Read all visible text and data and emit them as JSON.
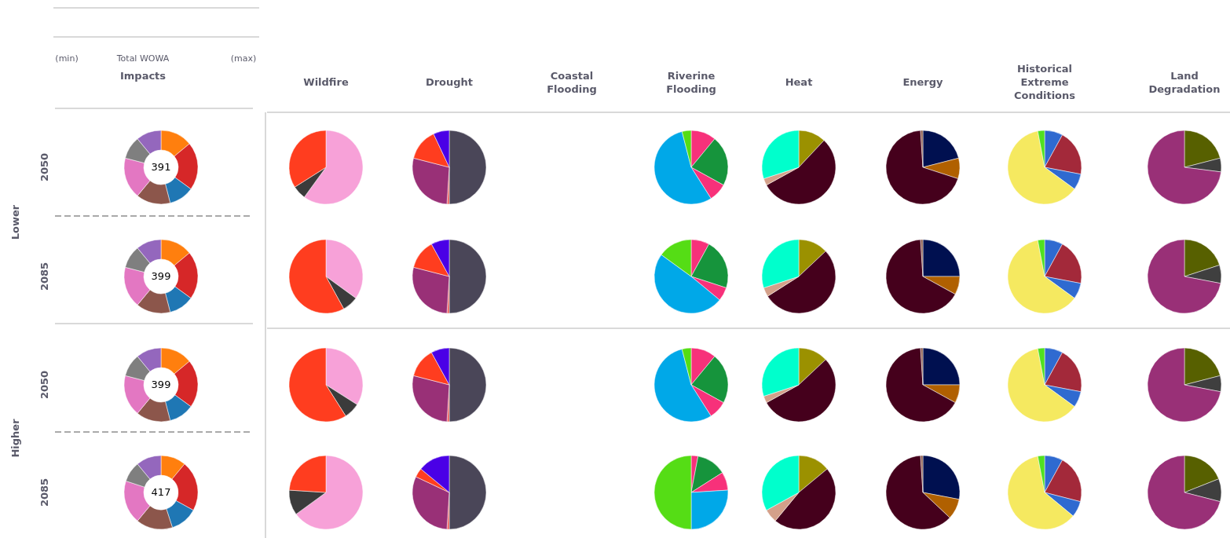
{
  "chart_data": [
    {
      "type": "other",
      "annotations": [
        "(min)",
        "Total WOWA",
        "(max)",
        "Impacts"
      ]
    },
    {
      "type": "other",
      "annotations": [
        "Wildfire",
        "Drought",
        "Coastal Flooding",
        "Riverine Flooding",
        "Heat",
        "Energy",
        "Historical Extreme Conditions",
        "Land Degradation"
      ]
    },
    {
      "type": "other",
      "annotations": [
        "Lower",
        "Higher",
        "2050",
        "2085",
        "2050",
        "2085"
      ]
    },
    {
      "type": "donut",
      "categories": [
        null,
        null,
        null,
        null,
        null,
        null,
        null
      ],
      "values": [
        14,
        21,
        11,
        15,
        18,
        10,
        11
      ],
      "colors": [
        "#ff7f0e",
        "#d62728",
        "#1f77b4",
        "#8c564b",
        "#e377c2",
        "#7f7f7f",
        "#9467bd"
      ],
      "annotations": [
        "391"
      ]
    },
    {
      "type": "pie",
      "categories": [
        null,
        null,
        null
      ],
      "values": [
        60,
        6,
        34
      ],
      "colors": [
        "#f7a1d8",
        "#3b3b3b",
        "#ff3d1f"
      ]
    },
    {
      "type": "pie",
      "categories": [
        null,
        null,
        null,
        null,
        null
      ],
      "values": [
        50,
        1,
        28,
        14,
        7
      ],
      "colors": [
        "#4a4658",
        "#f0605a",
        "#993077",
        "#ff3d1f",
        "#4a00e6"
      ]
    },
    {
      "type": "pie",
      "categories": [
        null,
        null,
        null,
        null,
        null
      ],
      "values": [
        11,
        22,
        8,
        55,
        4
      ],
      "colors": [
        "#f7317a",
        "#16943c",
        "#f7317a",
        "#00a8e8",
        "#55dd15"
      ]
    },
    {
      "type": "pie",
      "categories": [
        null,
        null,
        null,
        null
      ],
      "values": [
        12,
        55,
        3,
        30
      ],
      "colors": [
        "#9b9100",
        "#45001c",
        "#d4a08a",
        "#00ffcc"
      ]
    },
    {
      "type": "pie",
      "categories": [
        null,
        null,
        null,
        null
      ],
      "values": [
        21,
        9,
        69,
        1
      ],
      "colors": [
        "#001050",
        "#b06000",
        "#45001c",
        "#8b5a4a"
      ]
    },
    {
      "type": "pie",
      "categories": [
        null,
        null,
        null,
        null,
        null
      ],
      "values": [
        8,
        20,
        7,
        62,
        3
      ],
      "colors": [
        "#2f6ad0",
        "#a3293a",
        "#2f6ad0",
        "#f5e960",
        "#50e020"
      ]
    },
    {
      "type": "pie",
      "categories": [
        null,
        null,
        null
      ],
      "values": [
        21,
        6,
        73
      ],
      "colors": [
        "#576000",
        "#3f3f3f",
        "#993077"
      ]
    },
    {
      "type": "donut",
      "categories": [
        null,
        null,
        null,
        null,
        null,
        null,
        null
      ],
      "values": [
        14,
        21,
        11,
        15,
        18,
        10,
        11
      ],
      "colors": [
        "#ff7f0e",
        "#d62728",
        "#1f77b4",
        "#8c564b",
        "#e377c2",
        "#7f7f7f",
        "#9467bd"
      ],
      "annotations": [
        "399"
      ]
    },
    {
      "type": "pie",
      "categories": [
        null,
        null,
        null
      ],
      "values": [
        35,
        7,
        58
      ],
      "colors": [
        "#f7a1d8",
        "#3b3b3b",
        "#ff3d1f"
      ]
    },
    {
      "type": "pie",
      "categories": [
        null,
        null,
        null,
        null,
        null
      ],
      "values": [
        50,
        1,
        28,
        13,
        8
      ],
      "colors": [
        "#4a4658",
        "#f0605a",
        "#993077",
        "#ff3d1f",
        "#4a00e6"
      ]
    },
    {
      "type": "pie",
      "categories": [
        null,
        null,
        null,
        null,
        null
      ],
      "values": [
        8,
        22,
        6,
        49,
        15
      ],
      "colors": [
        "#f7317a",
        "#16943c",
        "#f7317a",
        "#00a8e8",
        "#55dd15"
      ]
    },
    {
      "type": "pie",
      "categories": [
        null,
        null,
        null,
        null
      ],
      "values": [
        13,
        53,
        4,
        30
      ],
      "colors": [
        "#9b9100",
        "#45001c",
        "#d4a08a",
        "#00ffcc"
      ]
    },
    {
      "type": "pie",
      "categories": [
        null,
        null,
        null,
        null
      ],
      "values": [
        25,
        8,
        66,
        1
      ],
      "colors": [
        "#001050",
        "#b06000",
        "#45001c",
        "#8b5a4a"
      ]
    },
    {
      "type": "pie",
      "categories": [
        null,
        null,
        null,
        null,
        null
      ],
      "values": [
        8,
        20,
        7,
        62,
        3
      ],
      "colors": [
        "#2f6ad0",
        "#a3293a",
        "#2f6ad0",
        "#f5e960",
        "#50e020"
      ]
    },
    {
      "type": "pie",
      "categories": [
        null,
        null,
        null
      ],
      "values": [
        20,
        8,
        72
      ],
      "colors": [
        "#576000",
        "#3f3f3f",
        "#993077"
      ]
    },
    {
      "type": "donut",
      "categories": [
        null,
        null,
        null,
        null,
        null,
        null,
        null
      ],
      "values": [
        14,
        21,
        11,
        15,
        18,
        10,
        11
      ],
      "colors": [
        "#ff7f0e",
        "#d62728",
        "#1f77b4",
        "#8c564b",
        "#e377c2",
        "#7f7f7f",
        "#9467bd"
      ],
      "annotations": [
        "399"
      ]
    },
    {
      "type": "pie",
      "categories": [
        null,
        null,
        null
      ],
      "values": [
        34,
        7,
        59
      ],
      "colors": [
        "#f7a1d8",
        "#3b3b3b",
        "#ff3d1f"
      ]
    },
    {
      "type": "pie",
      "categories": [
        null,
        null,
        null,
        null,
        null
      ],
      "values": [
        50,
        1,
        28,
        13,
        8
      ],
      "colors": [
        "#4a4658",
        "#f0605a",
        "#993077",
        "#ff3d1f",
        "#4a00e6"
      ]
    },
    {
      "type": "pie",
      "categories": [
        null,
        null,
        null,
        null,
        null
      ],
      "values": [
        11,
        22,
        8,
        55,
        4
      ],
      "colors": [
        "#f7317a",
        "#16943c",
        "#f7317a",
        "#00a8e8",
        "#55dd15"
      ]
    },
    {
      "type": "pie",
      "categories": [
        null,
        null,
        null,
        null
      ],
      "values": [
        13,
        54,
        3,
        30
      ],
      "colors": [
        "#9b9100",
        "#45001c",
        "#d4a08a",
        "#00ffcc"
      ]
    },
    {
      "type": "pie",
      "categories": [
        null,
        null,
        null,
        null
      ],
      "values": [
        25,
        8,
        66,
        1
      ],
      "colors": [
        "#001050",
        "#b06000",
        "#45001c",
        "#8b5a4a"
      ]
    },
    {
      "type": "pie",
      "categories": [
        null,
        null,
        null,
        null,
        null
      ],
      "values": [
        8,
        20,
        7,
        62,
        3
      ],
      "colors": [
        "#2f6ad0",
        "#a3293a",
        "#2f6ad0",
        "#f5e960",
        "#50e020"
      ]
    },
    {
      "type": "pie",
      "categories": [
        null,
        null,
        null
      ],
      "values": [
        21,
        7,
        72
      ],
      "colors": [
        "#576000",
        "#3f3f3f",
        "#993077"
      ]
    },
    {
      "type": "donut",
      "categories": [
        null,
        null,
        null,
        null,
        null,
        null,
        null
      ],
      "values": [
        11,
        22,
        12,
        16,
        19,
        9,
        11
      ],
      "colors": [
        "#ff7f0e",
        "#d62728",
        "#1f77b4",
        "#8c564b",
        "#e377c2",
        "#7f7f7f",
        "#9467bd"
      ],
      "annotations": [
        "417"
      ]
    },
    {
      "type": "pie",
      "categories": [
        null,
        null,
        null
      ],
      "values": [
        65,
        11,
        24
      ],
      "colors": [
        "#f7a1d8",
        "#3b3b3b",
        "#ff3d1f"
      ]
    },
    {
      "type": "pie",
      "categories": [
        null,
        null,
        null,
        null,
        null
      ],
      "values": [
        50,
        1,
        31,
        4,
        14
      ],
      "colors": [
        "#4a4658",
        "#f0605a",
        "#993077",
        "#ff3d1f",
        "#4a00e6"
      ]
    },
    {
      "type": "pie",
      "categories": [
        null,
        null,
        null,
        null,
        null
      ],
      "values": [
        3,
        13,
        8,
        26,
        50
      ],
      "colors": [
        "#f7317a",
        "#16943c",
        "#f7317a",
        "#00a8e8",
        "#55dd15"
      ]
    },
    {
      "type": "pie",
      "categories": [
        null,
        null,
        null,
        null
      ],
      "values": [
        14,
        47,
        6,
        33
      ],
      "colors": [
        "#9b9100",
        "#45001c",
        "#d4a08a",
        "#00ffcc"
      ]
    },
    {
      "type": "pie",
      "categories": [
        null,
        null,
        null,
        null
      ],
      "values": [
        28,
        9,
        62,
        1
      ],
      "colors": [
        "#001050",
        "#b06000",
        "#45001c",
        "#8b5a4a"
      ]
    },
    {
      "type": "pie",
      "categories": [
        null,
        null,
        null,
        null,
        null
      ],
      "values": [
        8,
        21,
        7,
        61,
        3
      ],
      "colors": [
        "#2f6ad0",
        "#a3293a",
        "#2f6ad0",
        "#f5e960",
        "#50e020"
      ]
    },
    {
      "type": "pie",
      "categories": [
        null,
        null,
        null
      ],
      "values": [
        19,
        10,
        71
      ],
      "colors": [
        "#576000",
        "#3f3f3f",
        "#993077"
      ]
    }
  ]
}
